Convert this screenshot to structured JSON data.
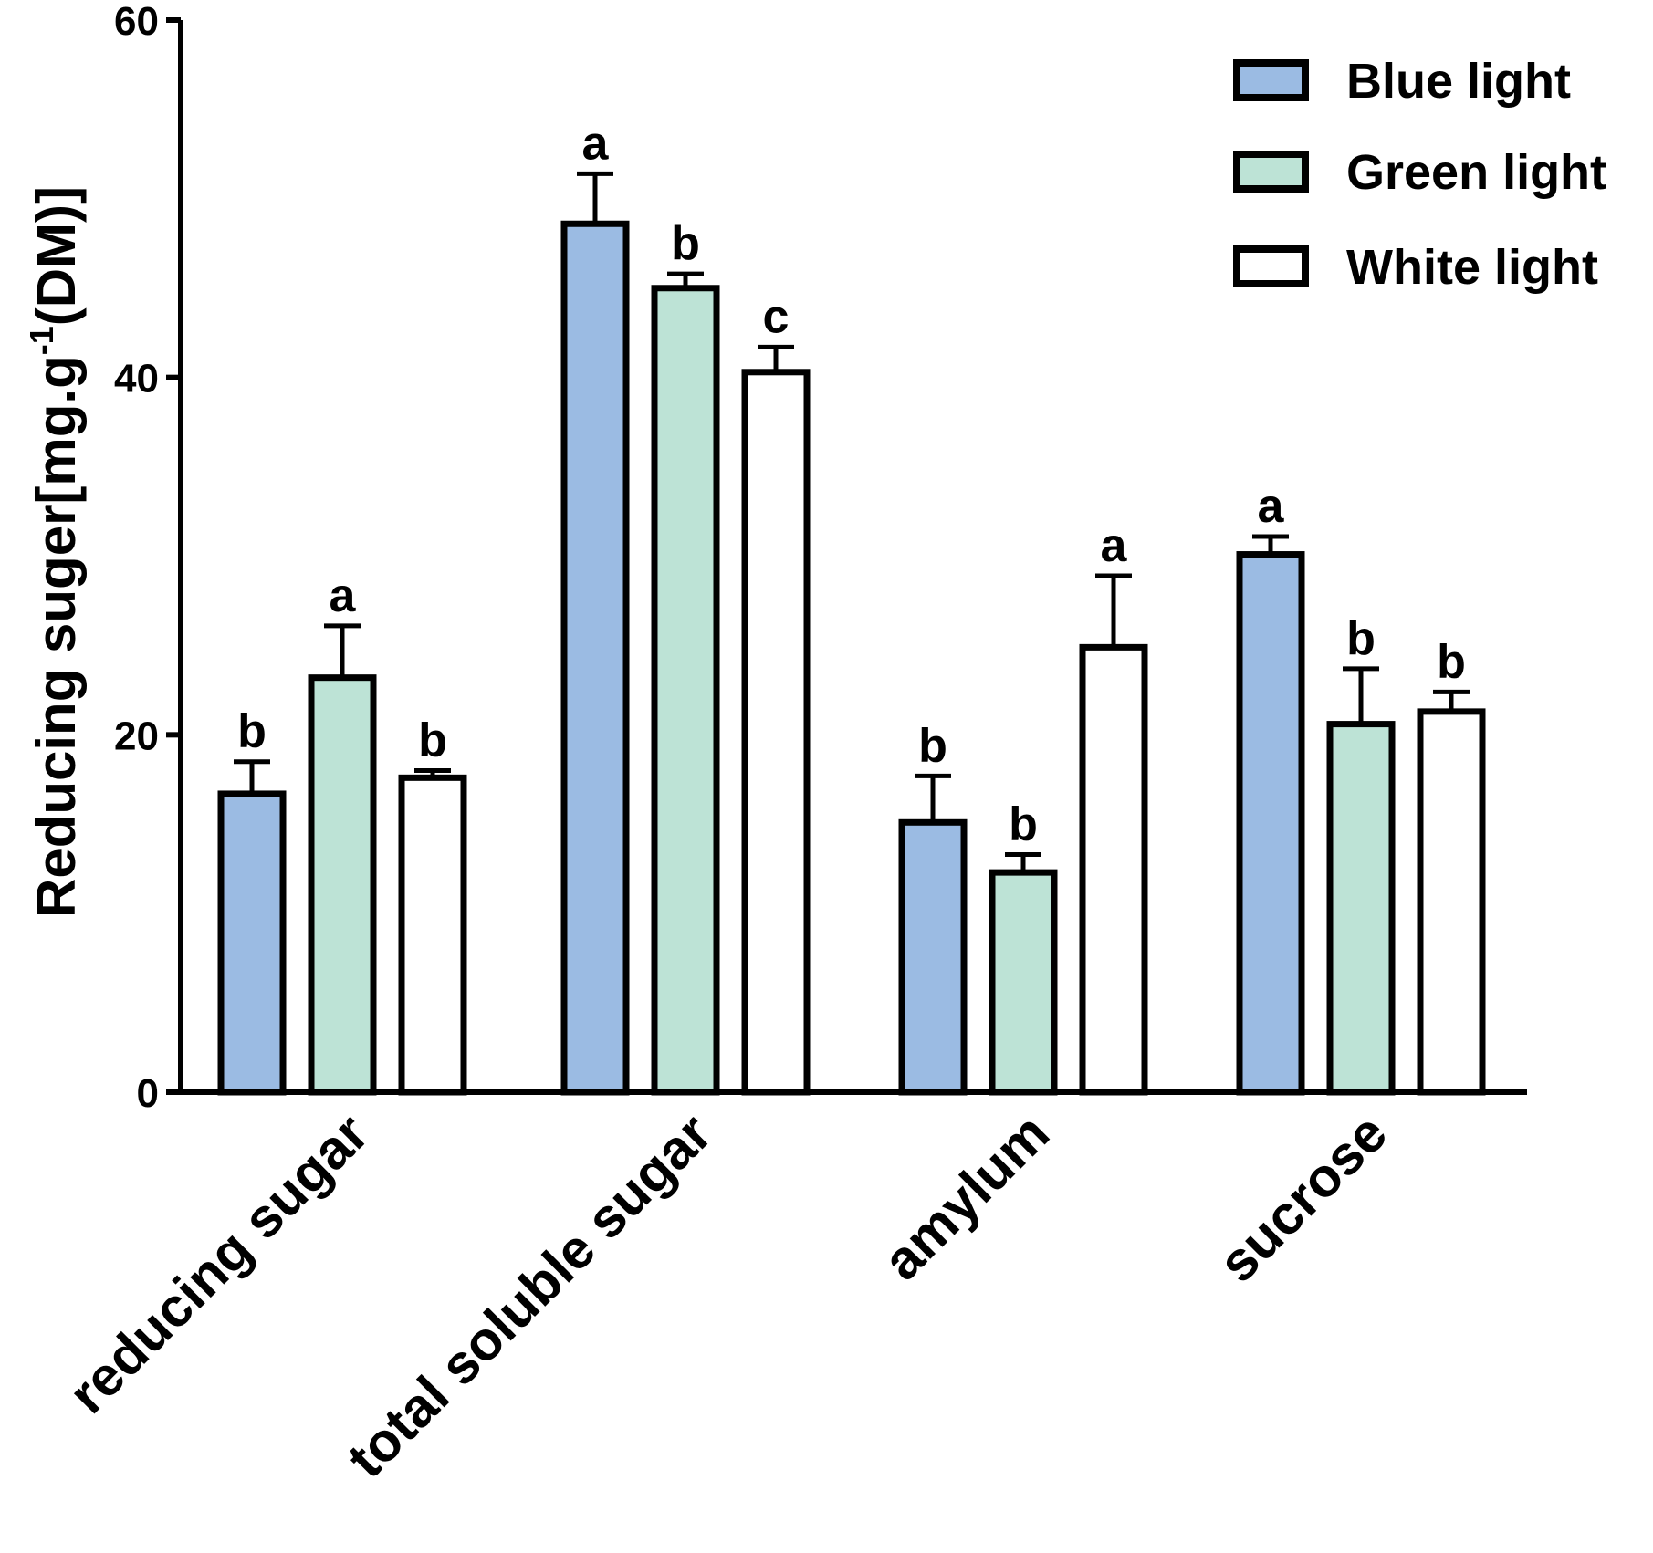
{
  "chart_data": {
    "type": "bar",
    "title": "",
    "xlabel": "",
    "ylabel_main": "Reducing suger[mg.g",
    "ylabel_sup": "-1",
    "ylabel_tail": "(DM)]",
    "ylim": [
      0,
      60
    ],
    "yticks": [
      0,
      20,
      40,
      60
    ],
    "categories": [
      "reducing sugar",
      "total soluble sugar",
      "amylum",
      "sucrose"
    ],
    "series": [
      {
        "name": "Blue light",
        "color": "#9bbbe3",
        "values": [
          16.7,
          48.6,
          15.1,
          30.1
        ],
        "errors": [
          1.8,
          2.8,
          2.6,
          1.0
        ],
        "letters": [
          "b",
          "a",
          "b",
          "a"
        ]
      },
      {
        "name": "Green light",
        "color": "#bde3d6",
        "values": [
          23.2,
          45.0,
          12.3,
          20.6
        ],
        "errors": [
          2.9,
          0.8,
          1.0,
          3.1
        ],
        "letters": [
          "a",
          "b",
          "b",
          "b"
        ]
      },
      {
        "name": "White light",
        "color": "#ffffff",
        "values": [
          17.6,
          40.3,
          24.9,
          21.3
        ],
        "errors": [
          0.4,
          1.4,
          4.0,
          1.1
        ],
        "letters": [
          "b",
          "c",
          "a",
          "b"
        ]
      }
    ],
    "legend_position": "top-right",
    "grid": false
  }
}
